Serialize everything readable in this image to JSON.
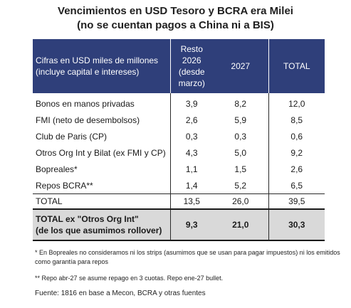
{
  "title": {
    "line1": "Vencimientos en USD Tesoro y BCRA era Milei",
    "line2": "(no se cuentan pagos a China ni a BIS)"
  },
  "table": {
    "header": {
      "label_line1": "Cifras en USD miles de millones",
      "label_line2": "(incluye capital e intereses)",
      "col1_line1": "Resto 2026",
      "col1_line2": "(desde",
      "col1_line3": "marzo)",
      "col2": "2027",
      "col3": "TOTAL"
    },
    "rows": [
      {
        "label": "Bonos en manos privadas",
        "v1": "3,9",
        "v2": "8,2",
        "v3": "12,0"
      },
      {
        "label": "FMI (neto de desembolsos)",
        "v1": "2,6",
        "v2": "5,9",
        "v3": "8,5"
      },
      {
        "label": "Club de Paris (CP)",
        "v1": "0,3",
        "v2": "0,3",
        "v3": "0,6"
      },
      {
        "label": "Otros Org Int y Bilat (ex FMI y CP)",
        "v1": "4,3",
        "v2": "5,0",
        "v3": "9,2"
      },
      {
        "label": "Bopreales*",
        "v1": "1,1",
        "v2": "1,5",
        "v3": "2,6"
      },
      {
        "label": "Repos BCRA**",
        "v1": "1,4",
        "v2": "5,2",
        "v3": "6,5"
      }
    ],
    "total": {
      "label": "TOTAL",
      "v1": "13,5",
      "v2": "26,0",
      "v3": "39,5"
    },
    "ex_org": {
      "label_line1": "TOTAL ex \"Otros Org Int\"",
      "label_line2": "(de los que asumimos rollover)",
      "v1": "9,3",
      "v2": "21,0",
      "v3": "30,3"
    }
  },
  "notes": {
    "note1": "* En Bopreales no consideramos ni los strips (asumimos que se usan para pagar impuestos) ni los emitidos como garantía para repos",
    "note2": "** Repo abr-27 se asume repago en 3 cuotas. Repo ene-27 bullet.",
    "source": "Fuente: 1816 en base a Mecon, BCRA y otras fuentes"
  }
}
